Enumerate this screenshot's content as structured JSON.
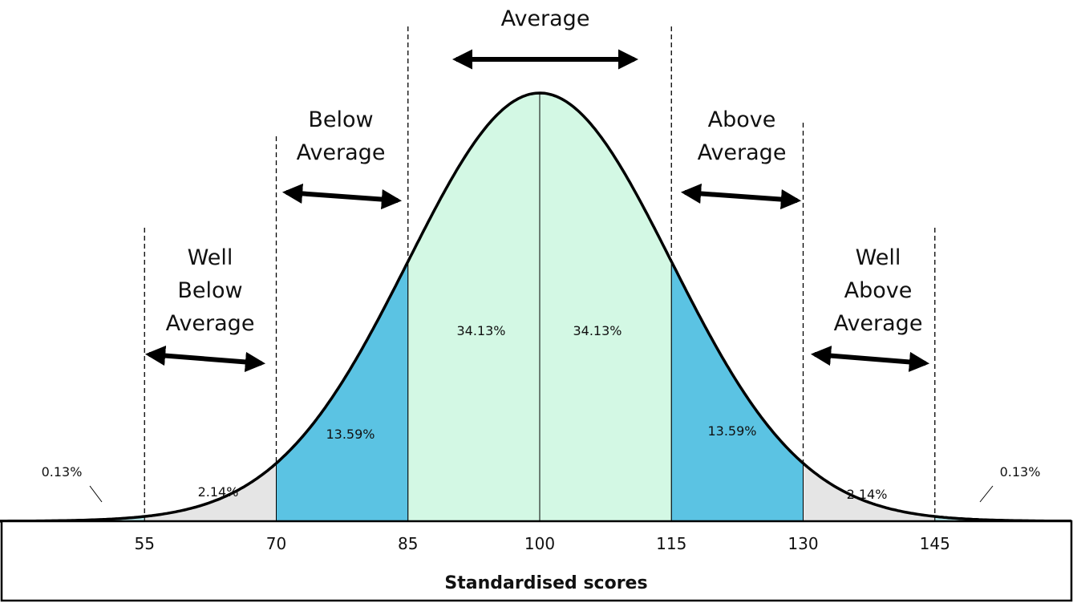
{
  "colors": {
    "tail": "#bdeef0",
    "gray": "#e5e5e5",
    "blue": "#5bc3e3",
    "green": "#d3f8e4",
    "curve": "#000000"
  },
  "regions": [
    {
      "id": "well-below",
      "lines": [
        "Well",
        "Below",
        "Average"
      ],
      "from": 55,
      "to": 70
    },
    {
      "id": "below",
      "lines": [
        "Below",
        "Average"
      ],
      "from": 70,
      "to": 85
    },
    {
      "id": "average",
      "lines": [
        "Average"
      ],
      "from": 85,
      "to": 115
    },
    {
      "id": "above",
      "lines": [
        "Above",
        "Average"
      ],
      "from": 115,
      "to": 130
    },
    {
      "id": "well-above",
      "lines": [
        "Well",
        "Above",
        "Average"
      ],
      "from": 130,
      "to": 145
    }
  ],
  "bands": [
    {
      "from": 40,
      "to": 55,
      "label": "0.13%",
      "color": "tail"
    },
    {
      "from": 55,
      "to": 70,
      "label": "2.14%",
      "color": "gray"
    },
    {
      "from": 70,
      "to": 85,
      "label": "13.59%",
      "color": "blue"
    },
    {
      "from": 85,
      "to": 100,
      "label": "34.13%",
      "color": "green"
    },
    {
      "from": 100,
      "to": 115,
      "label": "34.13%",
      "color": "green"
    },
    {
      "from": 115,
      "to": 130,
      "label": "13.59%",
      "color": "blue"
    },
    {
      "from": 130,
      "to": 145,
      "label": "2.14%",
      "color": "gray"
    },
    {
      "from": 145,
      "to": 160,
      "label": "0.13%",
      "color": "tail"
    }
  ],
  "axis": {
    "ticks": [
      "55",
      "70",
      "85",
      "100",
      "115",
      "130",
      "145"
    ],
    "title": "Standardised scores"
  }
}
